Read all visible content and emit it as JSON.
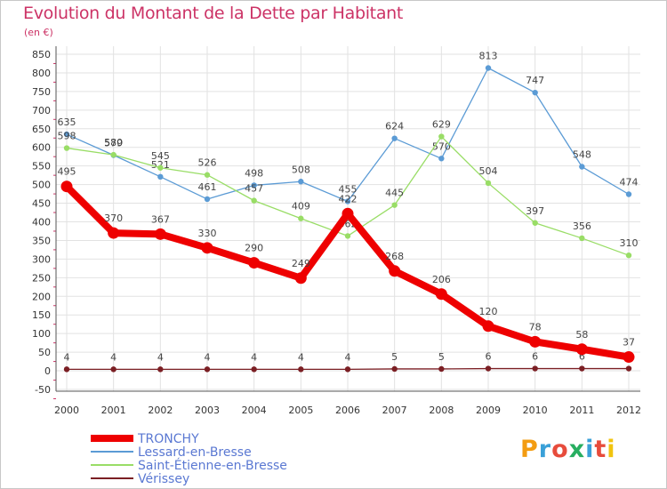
{
  "header": {
    "title": "Evolution du Montant de la Dette par Habitant",
    "subtitle": "(en €)"
  },
  "logo": {
    "letters": [
      "P",
      "r",
      "o",
      "x",
      "i",
      "t",
      "i"
    ],
    "colors": [
      "#f39c12",
      "#3aa0d8",
      "#e74c3c",
      "#27ae60",
      "#3aa0d8",
      "#e74c3c",
      "#f1c40f"
    ]
  },
  "chart_data": {
    "type": "line",
    "x": [
      "2000",
      "2001",
      "2002",
      "2003",
      "2004",
      "2005",
      "2006",
      "2007",
      "2008",
      "2009",
      "2010",
      "2011",
      "2012"
    ],
    "ylim": [
      -50,
      850
    ],
    "yticks": [
      "-50",
      "0",
      "50",
      "100",
      "150",
      "200",
      "250",
      "300",
      "350",
      "400",
      "450",
      "500",
      "550",
      "600",
      "650",
      "700",
      "750",
      "800",
      "850"
    ],
    "grid": true,
    "legend_position": "bottom-left",
    "series": [
      {
        "name": "Lessard-en-Bresse",
        "color": "#5b9bd5",
        "values": [
          635,
          579,
          521,
          461,
          498,
          508,
          455,
          624,
          570,
          813,
          747,
          548,
          474
        ],
        "labels": [
          "635",
          "579",
          "521",
          "461",
          "498",
          "508",
          "455",
          "624",
          "570",
          "813",
          "747",
          "548",
          "474"
        ]
      },
      {
        "name": "Saint-Étienne-en-Bresse",
        "color": "#99dd66",
        "values": [
          598,
          580,
          545,
          526,
          457,
          409,
          362,
          445,
          629,
          504,
          397,
          356,
          310
        ],
        "labels": [
          "598",
          "580",
          "545",
          "526",
          "457",
          "409",
          "362",
          "445",
          "629",
          "504",
          "397",
          "356",
          "310"
        ]
      },
      {
        "name": "Vérissey",
        "color": "#7b1f24",
        "values": [
          4,
          4,
          4,
          4,
          4,
          4,
          4,
          5,
          5,
          6,
          6,
          6,
          6
        ],
        "labels": [
          "4",
          "4",
          "4",
          "4",
          "4",
          "4",
          "4",
          "5",
          "5",
          "6",
          "6",
          "6",
          "6"
        ]
      },
      {
        "name": "TRONCHY",
        "color": "#ee0000",
        "values": [
          495,
          370,
          367,
          330,
          290,
          249,
          422,
          268,
          206,
          120,
          78,
          58,
          37
        ],
        "labels": [
          "495",
          "370",
          "367",
          "330",
          "290",
          "249",
          "422",
          "268",
          "206",
          "120",
          "78",
          "58",
          "37"
        ]
      }
    ]
  }
}
